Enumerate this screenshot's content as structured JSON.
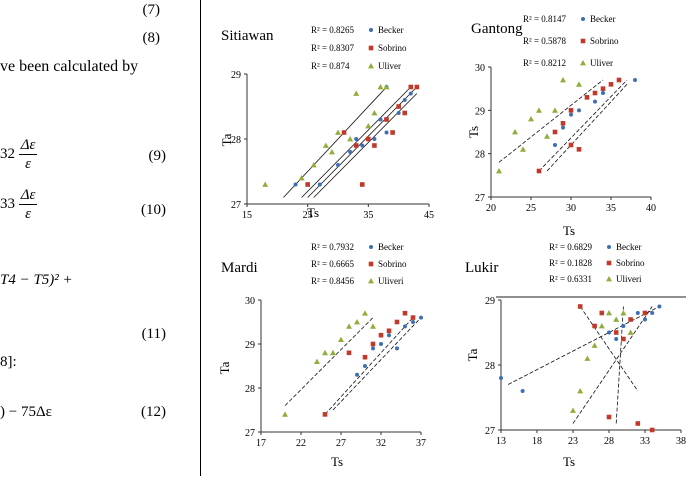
{
  "left_text": {
    "eq7": "(7)",
    "eq8": "(8)",
    "line1": "ve been calculated by",
    "eq9_prefix": "32",
    "eq9_num": "Δε",
    "eq9_den": "ε",
    "eq9": "(9)",
    "eq10_prefix": "33",
    "eq10_num": "Δε",
    "eq10_den": "ε",
    "eq10": "(10)",
    "eq11_expr": "T4 − T5)² +",
    "eq11": "(11)",
    "ref": "8]:",
    "eq12_expr": ") − 75Δε",
    "eq12": "(12)"
  },
  "chart_data": [
    {
      "type": "scatter",
      "title": "Sitiawan",
      "xlabel": "Ts",
      "ylabel": "Ta",
      "xticks": [
        "15",
        "25",
        "35",
        "45"
      ],
      "yticks": [
        "27",
        "28",
        "29"
      ],
      "xlim": [
        15,
        45
      ],
      "ylim": [
        27,
        29
      ],
      "legend": [
        {
          "r2": "R² = 0.8265",
          "name": "Becker",
          "color": "#3d6fb5"
        },
        {
          "r2": "R² = 0.8307",
          "name": "Sobrino",
          "color": "#c0392b"
        },
        {
          "r2": "R² = 0.874",
          "name": "Uliver",
          "color": "#8fae3c"
        }
      ],
      "series": [
        {
          "name": "Becker",
          "points": [
            [
              23,
              27.3
            ],
            [
              27,
              27.3
            ],
            [
              30,
              27.6
            ],
            [
              32,
              27.8
            ],
            [
              33,
              28.0
            ],
            [
              34,
              27.9
            ],
            [
              36,
              28.0
            ],
            [
              37,
              28.3
            ],
            [
              38,
              28.1
            ],
            [
              40,
              28.4
            ],
            [
              41,
              28.6
            ],
            [
              42,
              28.7
            ],
            [
              38,
              28.8
            ]
          ]
        },
        {
          "name": "Sobrino",
          "points": [
            [
              25,
              27.3
            ],
            [
              31,
              28.1
            ],
            [
              33,
              27.9
            ],
            [
              34,
              27.3
            ],
            [
              35,
              28.0
            ],
            [
              36,
              27.9
            ],
            [
              38,
              28.3
            ],
            [
              39,
              28.1
            ],
            [
              41,
              28.4
            ],
            [
              42,
              28.8
            ],
            [
              43,
              28.8
            ],
            [
              40,
              28.5
            ]
          ]
        },
        {
          "name": "Uliver",
          "points": [
            [
              18,
              27.3
            ],
            [
              24,
              27.4
            ],
            [
              26,
              27.6
            ],
            [
              28,
              27.9
            ],
            [
              30,
              28.1
            ],
            [
              32,
              28.0
            ],
            [
              33,
              28.7
            ],
            [
              35,
              28.2
            ],
            [
              36,
              28.4
            ],
            [
              37,
              28.8
            ],
            [
              38,
              28.8
            ],
            [
              29,
              27.8
            ]
          ]
        }
      ],
      "trendlines": [
        [
          [
            21,
            27.1
          ],
          [
            38,
            28.8
          ]
        ],
        [
          [
            24,
            27.1
          ],
          [
            42,
            28.8
          ]
        ],
        [
          [
            25,
            27.1
          ],
          [
            43,
            28.8
          ]
        ],
        [
          [
            26,
            27.1
          ],
          [
            43,
            28.7
          ]
        ]
      ]
    },
    {
      "type": "scatter",
      "title": "Gantong",
      "xlabel": "Ts",
      "ylabel": "Ts",
      "xticks": [
        "20",
        "25",
        "30",
        "35",
        "40"
      ],
      "yticks": [
        "27",
        "28",
        "29",
        "30"
      ],
      "xlim": [
        20,
        40
      ],
      "ylim": [
        27,
        30
      ],
      "legend": [
        {
          "r2": "R² = 0.8147",
          "name": "Becker",
          "color": "#3d6fb5"
        },
        {
          "r2": "R² = 0.5878",
          "name": "Sobrino",
          "color": "#c0392b"
        },
        {
          "r2": "R² = 0.8212",
          "name": "Uliver",
          "color": "#8fae3c"
        }
      ],
      "series": [
        {
          "name": "Becker",
          "points": [
            [
              28,
              28.2
            ],
            [
              29,
              28.6
            ],
            [
              30,
              28.9
            ],
            [
              31,
              29.0
            ],
            [
              33,
              29.2
            ],
            [
              34,
              29.4
            ],
            [
              35,
              29.6
            ],
            [
              36,
              29.7
            ],
            [
              38,
              29.7
            ]
          ]
        },
        {
          "name": "Sobrino",
          "points": [
            [
              26,
              27.6
            ],
            [
              28,
              28.5
            ],
            [
              29,
              28.7
            ],
            [
              30,
              29.0
            ],
            [
              31,
              28.1
            ],
            [
              32,
              29.3
            ],
            [
              33,
              29.4
            ],
            [
              34,
              29.5
            ],
            [
              35,
              29.6
            ],
            [
              30,
              28.2
            ],
            [
              36,
              29.7
            ]
          ]
        },
        {
          "name": "Uliver",
          "points": [
            [
              21,
              27.6
            ],
            [
              23,
              28.5
            ],
            [
              24,
              28.1
            ],
            [
              25,
              28.8
            ],
            [
              26,
              29.0
            ],
            [
              28,
              29.0
            ],
            [
              29,
              29.7
            ],
            [
              31,
              29.6
            ],
            [
              27,
              28.4
            ]
          ]
        }
      ],
      "trendlines": [
        [
          [
            21,
            27.8
          ],
          [
            34,
            29.7
          ]
        ],
        [
          [
            26,
            27.6
          ],
          [
            37,
            29.7
          ]
        ],
        [
          [
            27,
            27.6
          ],
          [
            37,
            29.6
          ]
        ]
      ]
    },
    {
      "type": "scatter",
      "title": "Mardi",
      "xlabel": "Ts",
      "ylabel": "Ta",
      "xticks": [
        "17",
        "22",
        "27",
        "32",
        "37"
      ],
      "yticks": [
        "27",
        "28",
        "29",
        "30"
      ],
      "xlim": [
        17,
        37
      ],
      "ylim": [
        27,
        30
      ],
      "legend": [
        {
          "r2": "R² = 0.7932",
          "name": "Becker",
          "color": "#3d6fb5"
        },
        {
          "r2": "R² = 0.6665",
          "name": "Sobrino",
          "color": "#c0392b"
        },
        {
          "r2": "R² = 0.8456",
          "name": "Uliveri",
          "color": "#8fae3c"
        }
      ],
      "series": [
        {
          "name": "Becker",
          "points": [
            [
              29,
              28.3
            ],
            [
              30,
              28.5
            ],
            [
              31,
              28.9
            ],
            [
              32,
              29.0
            ],
            [
              33,
              29.2
            ],
            [
              34,
              28.9
            ],
            [
              35,
              29.4
            ],
            [
              36,
              29.5
            ],
            [
              37,
              29.6
            ]
          ]
        },
        {
          "name": "Sobrino",
          "points": [
            [
              25,
              27.4
            ],
            [
              28,
              28.8
            ],
            [
              30,
              28.7
            ],
            [
              31,
              29.0
            ],
            [
              32,
              29.2
            ],
            [
              33,
              29.3
            ],
            [
              34,
              29.5
            ],
            [
              35,
              29.7
            ],
            [
              36,
              29.6
            ]
          ]
        },
        {
          "name": "Uliveri",
          "points": [
            [
              20,
              27.4
            ],
            [
              24,
              28.6
            ],
            [
              25,
              28.8
            ],
            [
              26,
              28.8
            ],
            [
              27,
              29.1
            ],
            [
              28,
              29.4
            ],
            [
              29,
              29.5
            ],
            [
              30,
              29.7
            ],
            [
              31,
              29.4
            ]
          ]
        }
      ],
      "trendlines": [
        [
          [
            20,
            27.6
          ],
          [
            31,
            29.6
          ]
        ],
        [
          [
            25,
            27.4
          ],
          [
            36,
            29.6
          ]
        ],
        [
          [
            26,
            27.5
          ],
          [
            37,
            29.6
          ]
        ]
      ]
    },
    {
      "type": "scatter",
      "title": "Lukir",
      "xlabel": "Ts",
      "ylabel": "Ta",
      "xticks": [
        "13",
        "18",
        "23",
        "28",
        "33",
        "38"
      ],
      "yticks": [
        "27",
        "28",
        "29"
      ],
      "xlim": [
        13,
        38
      ],
      "ylim": [
        27,
        29
      ],
      "legend": [
        {
          "r2": "R² = 0.6829",
          "name": "Becker",
          "color": "#3d6fb5"
        },
        {
          "r2": "R² = 0.1828",
          "name": "Sobrino",
          "color": "#c0392b"
        },
        {
          "r2": "R² = 0.6331",
          "name": "Uliveri",
          "color": "#8fae3c"
        }
      ],
      "series": [
        {
          "name": "Becker",
          "points": [
            [
              13,
              27.8
            ],
            [
              16,
              27.6
            ],
            [
              28,
              28.5
            ],
            [
              29,
              28.4
            ],
            [
              30,
              28.6
            ],
            [
              31,
              28.7
            ],
            [
              32,
              28.8
            ],
            [
              33,
              28.7
            ],
            [
              34,
              28.8
            ],
            [
              35,
              28.9
            ]
          ]
        },
        {
          "name": "Sobrino",
          "points": [
            [
              24,
              28.9
            ],
            [
              26,
              28.6
            ],
            [
              27,
              28.8
            ],
            [
              28,
              27.2
            ],
            [
              29,
              28.5
            ],
            [
              30,
              28.4
            ],
            [
              31,
              28.7
            ],
            [
              32,
              27.1
            ],
            [
              33,
              28.8
            ],
            [
              34,
              27.0
            ]
          ]
        },
        {
          "name": "Uliveri",
          "points": [
            [
              23,
              27.3
            ],
            [
              25,
              28.1
            ],
            [
              26,
              28.3
            ],
            [
              27,
              28.6
            ],
            [
              28,
              28.8
            ],
            [
              29,
              28.7
            ],
            [
              30,
              28.8
            ],
            [
              31,
              28.5
            ],
            [
              24,
              27.6
            ]
          ]
        }
      ],
      "trendlines": [
        [
          [
            14,
            27.7
          ],
          [
            35,
            28.9
          ]
        ],
        [
          [
            23,
            27.1
          ],
          [
            34,
            28.9
          ]
        ],
        [
          [
            24,
            28.9
          ],
          [
            32,
            27.6
          ]
        ],
        [
          [
            29,
            27.1
          ],
          [
            30,
            28.9
          ]
        ]
      ]
    }
  ]
}
